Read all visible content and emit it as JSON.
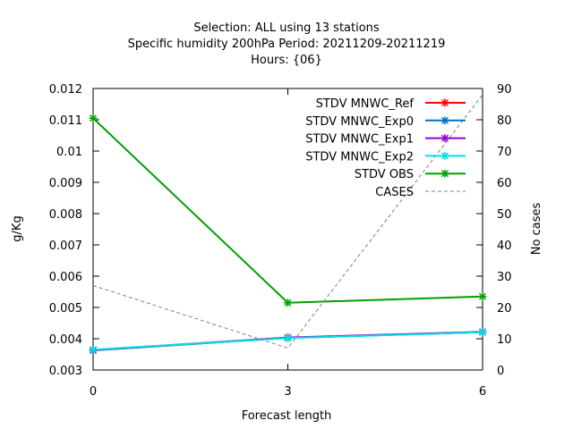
{
  "chart_data": {
    "type": "line",
    "title_lines": [
      "Selection: ALL using    13 stations",
      "Specific humidity 200hPa   Period: 20211209-20211219",
      "Hours: {06}"
    ],
    "xlabel": "Forecast length",
    "ylabel": "g/Kg",
    "y2label": "No cases",
    "x": [
      0,
      3,
      6
    ],
    "xlim": [
      0,
      6
    ],
    "ylim": [
      0.003,
      0.012
    ],
    "y2lim": [
      0,
      90
    ],
    "xticks": [
      "0",
      "3",
      "6"
    ],
    "yticks": [
      "0.003",
      "0.004",
      "0.005",
      "0.006",
      "0.007",
      "0.008",
      "0.009",
      "0.01",
      "0.011",
      "0.012"
    ],
    "y2ticks": [
      "0",
      "10",
      "20",
      "30",
      "40",
      "50",
      "60",
      "70",
      "80",
      "90"
    ],
    "grid": false,
    "legend_position": "top-right",
    "series": [
      {
        "name": "STDV MNWC_Ref",
        "axis": "y1",
        "color": "#ff0000",
        "style": "solid",
        "marker": true,
        "values": [
          0.00363,
          0.00403,
          0.00421
        ]
      },
      {
        "name": "STDV MNWC_Exp0",
        "axis": "y1",
        "color": "#0072bd",
        "style": "solid",
        "marker": true,
        "values": [
          0.00363,
          0.00403,
          0.00421
        ]
      },
      {
        "name": "STDV MNWC_Exp1",
        "axis": "y1",
        "color": "#9400d3",
        "style": "solid",
        "marker": true,
        "values": [
          0.00364,
          0.00404,
          0.00422
        ]
      },
      {
        "name": "STDV MNWC_Exp2",
        "axis": "y1",
        "color": "#00e0e0",
        "style": "solid",
        "marker": true,
        "values": [
          0.00365,
          0.00402,
          0.00421
        ]
      },
      {
        "name": "STDV OBS",
        "axis": "y1",
        "color": "#00a000",
        "style": "solid",
        "marker": true,
        "values": [
          0.01105,
          0.00515,
          0.00535
        ]
      },
      {
        "name": "CASES",
        "axis": "y2",
        "color": "#808080",
        "style": "dashed",
        "marker": false,
        "values": [
          27,
          7,
          88
        ]
      }
    ]
  }
}
